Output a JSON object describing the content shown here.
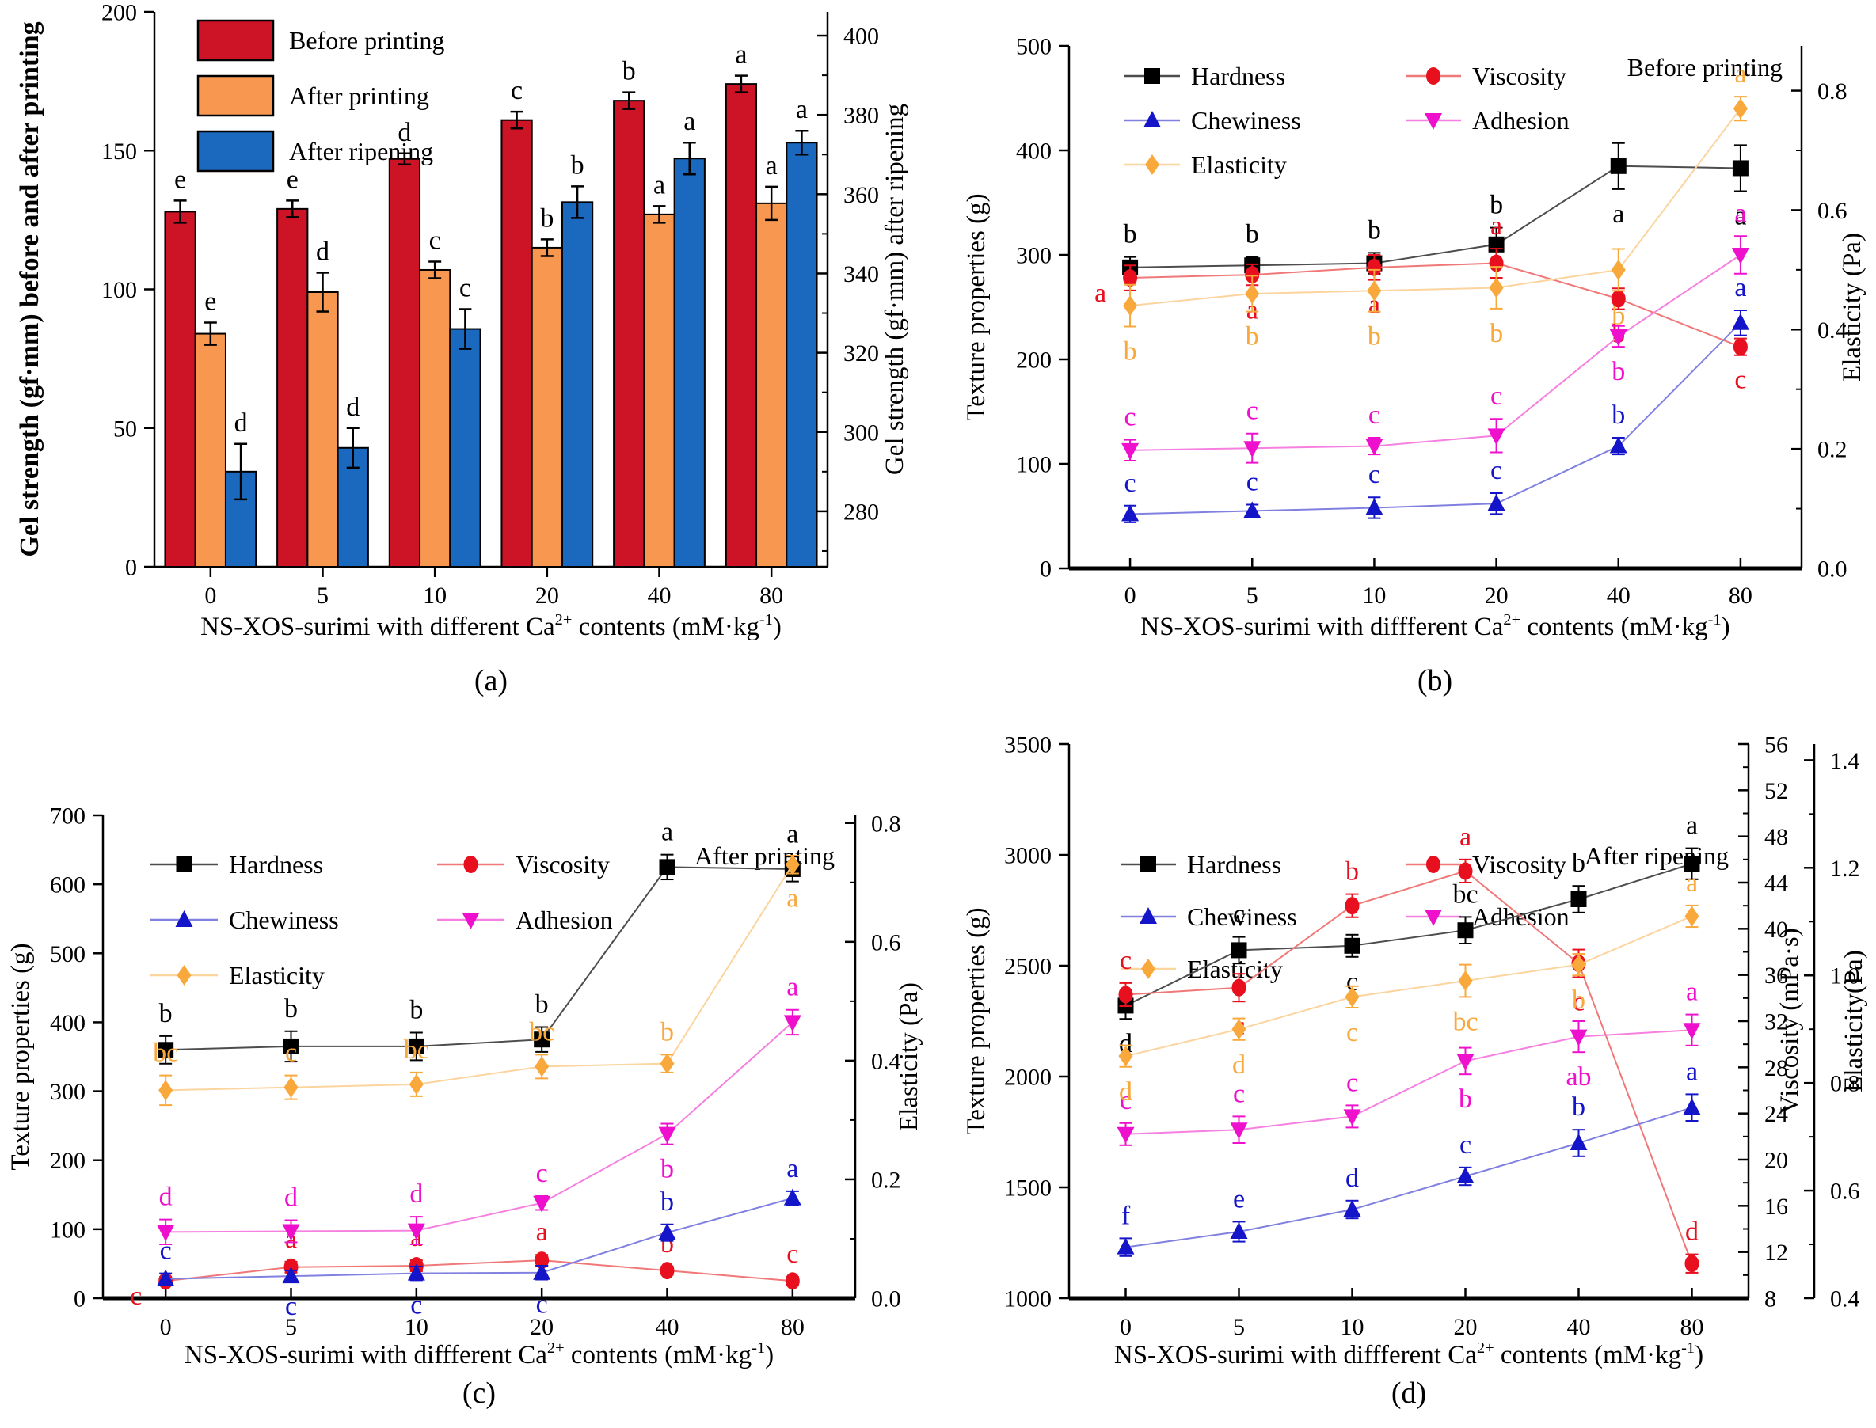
{
  "figure": {
    "background": "#ffffff"
  },
  "chart_data": [
    {
      "key": "a",
      "type": "bar",
      "caption": "(a)",
      "categories": [
        "0",
        "5",
        "10",
        "20",
        "40",
        "80"
      ],
      "x_title_segments": [
        {
          "t": "NS-XOS-surimi with different Ca"
        },
        {
          "t": "2+",
          "sup": true
        },
        {
          "t": " contents (mM·kg"
        },
        {
          "t": "-1",
          "sup": true
        },
        {
          "t": ")"
        }
      ],
      "left_axis": {
        "title": "Gel strength (gf·mm) before and after printing",
        "min": 0,
        "max": 200,
        "ticks": [
          0,
          50,
          100,
          150,
          200
        ],
        "bold_title": true
      },
      "right_axis": {
        "title": "Gel strength (gf·mm) after ripening",
        "min": 266,
        "max": 406,
        "ticks": [
          280,
          300,
          320,
          340,
          360,
          380,
          400
        ],
        "minor": 10
      },
      "legend_labels": [
        "Before printing",
        "After printing",
        "After ripening"
      ],
      "series": [
        {
          "name": "Before printing",
          "axis": "left",
          "color": "#cd1426",
          "values": [
            128,
            129,
            147,
            161,
            168,
            174
          ],
          "errors": [
            4,
            3,
            2,
            3,
            3,
            3
          ],
          "letters": [
            "e",
            "e",
            "d",
            "c",
            "b",
            "a"
          ]
        },
        {
          "name": "After printing",
          "axis": "left",
          "color": "#f79750",
          "values": [
            84,
            99,
            107,
            115,
            127,
            131
          ],
          "errors": [
            4,
            7,
            3,
            3,
            3,
            6
          ],
          "letters": [
            "e",
            "d",
            "c",
            "b",
            "a",
            "a"
          ]
        },
        {
          "name": "After ripening",
          "axis": "right",
          "color": "#1a69bf",
          "values": [
            290,
            296,
            326,
            358,
            369,
            373
          ],
          "errors": [
            7,
            5,
            5,
            4,
            4,
            3
          ],
          "letters": [
            "d",
            "d",
            "c",
            "b",
            "a",
            "a"
          ]
        }
      ]
    },
    {
      "key": "b",
      "type": "line",
      "caption": "(b)",
      "inside_title": "Before printing",
      "categories": [
        "0",
        "5",
        "10",
        "20",
        "40",
        "80"
      ],
      "x_title_segments": [
        {
          "t": "NS-XOS-surimi with diffferent Ca"
        },
        {
          "t": "2+",
          "sup": true
        },
        {
          "t": " contents (mM·kg"
        },
        {
          "t": "-1",
          "sup": true
        },
        {
          "t": ")"
        }
      ],
      "left_axis": {
        "title": "Texture properties (g)",
        "min": 0,
        "max": 500,
        "ticks": [
          0,
          100,
          200,
          300,
          400,
          500
        ]
      },
      "right_axis": {
        "title": "Elasticity (Pa)",
        "min": 0,
        "max": 0.875,
        "ticks": [
          0.0,
          0.2,
          0.4,
          0.6,
          0.8
        ],
        "minor": 0.1,
        "decimals": 1
      },
      "series": [
        {
          "name": "Hardness",
          "axis": "left",
          "marker": "square",
          "color": "#000000",
          "line_color": "#4d4d4d",
          "values": [
            288,
            290,
            292,
            310,
            385,
            383
          ],
          "errors": [
            10,
            8,
            10,
            16,
            22,
            22
          ],
          "letters": [
            "b",
            "b",
            "b",
            "b",
            "a",
            "a"
          ],
          "letter_pos": [
            "above",
            "above",
            "above",
            "above",
            "below",
            "below"
          ]
        },
        {
          "name": "Viscosity",
          "axis": "left",
          "marker": "circle",
          "color": "#e8101e",
          "line_color": "#f07878",
          "values": [
            278,
            281,
            288,
            292,
            258,
            212
          ],
          "errors": [
            12,
            10,
            12,
            14,
            10,
            8
          ],
          "letters": [
            "a",
            "a",
            "a",
            "a",
            "b",
            "c"
          ],
          "letter_pos": [
            "left",
            "below",
            "below",
            "above",
            "below",
            "below"
          ]
        },
        {
          "name": "Chewiness",
          "axis": "left",
          "marker": "triangle-up",
          "color": "#1414c8",
          "line_color": "#8080e0",
          "values": [
            52,
            55,
            58,
            62,
            117,
            235
          ],
          "errors": [
            8,
            6,
            10,
            10,
            8,
            12
          ],
          "letters": [
            "c",
            "c",
            "c",
            "c",
            "b",
            "a"
          ],
          "letter_pos": [
            "above",
            "above",
            "above",
            "above",
            "above",
            "above"
          ]
        },
        {
          "name": "Adhesion",
          "axis": "left",
          "marker": "triangle-down",
          "color": "#ee10cc",
          "line_color": "#f580e0",
          "values": [
            113,
            115,
            117,
            127,
            222,
            300
          ],
          "errors": [
            10,
            14,
            8,
            16,
            10,
            18
          ],
          "letters": [
            "c",
            "c",
            "c",
            "c",
            "b",
            "a"
          ],
          "letter_pos": [
            "above",
            "above",
            "above",
            "above",
            "below",
            "above"
          ]
        },
        {
          "name": "Elasticity",
          "axis": "right",
          "marker": "diamond",
          "color": "#f9a83c",
          "line_color": "#fbd49e",
          "values": [
            0.44,
            0.46,
            0.465,
            0.47,
            0.5,
            0.77
          ],
          "errors": [
            0.035,
            0.03,
            0.035,
            0.035,
            0.035,
            0.02
          ],
          "letters": [
            "b",
            "b",
            "b",
            "b",
            "b",
            "a"
          ],
          "letter_pos": [
            "below",
            "below",
            "below",
            "below",
            "below",
            "above"
          ]
        }
      ]
    },
    {
      "key": "c",
      "type": "line",
      "caption": "(c)",
      "inside_title": "After printing",
      "categories": [
        "0",
        "5",
        "10",
        "20",
        "40",
        "80"
      ],
      "x_title_segments": [
        {
          "t": "NS-XOS-surimi with diffferent Ca"
        },
        {
          "t": "2+",
          "sup": true
        },
        {
          "t": " contents (mM·kg"
        },
        {
          "t": "-1",
          "sup": true
        },
        {
          "t": ")"
        }
      ],
      "left_axis": {
        "title": "Texture properties (g)",
        "min": 0,
        "max": 700,
        "ticks": [
          0,
          100,
          200,
          300,
          400,
          500,
          600,
          700
        ]
      },
      "right_axis": {
        "title": "Elasticity (Pa)",
        "min": 0,
        "max": 0.813,
        "ticks": [
          0.0,
          0.2,
          0.4,
          0.6,
          0.8
        ],
        "minor": 0.1,
        "decimals": 1
      },
      "series": [
        {
          "name": "Hardness",
          "axis": "left",
          "marker": "square",
          "color": "#000000",
          "line_color": "#4d4d4d",
          "values": [
            360,
            365,
            365,
            375,
            625,
            622
          ],
          "errors": [
            20,
            22,
            20,
            18,
            18,
            18
          ],
          "letters": [
            "b",
            "b",
            "b",
            "b",
            "a",
            "a"
          ],
          "letter_pos": [
            "above",
            "above",
            "above",
            "above",
            "above",
            "above"
          ]
        },
        {
          "name": "Viscosity",
          "axis": "left",
          "marker": "circle",
          "color": "#e8101e",
          "line_color": "#f07878",
          "values": [
            25,
            45,
            47,
            55,
            40,
            25
          ],
          "errors": [
            6,
            8,
            8,
            8,
            6,
            6
          ],
          "letters": [
            "c",
            "a",
            "a",
            "a",
            "b",
            "c"
          ],
          "letter_pos": [
            "left",
            "above",
            "above",
            "above",
            "above",
            "above"
          ]
        },
        {
          "name": "Chewiness",
          "axis": "left",
          "marker": "triangle-up",
          "color": "#1414c8",
          "line_color": "#8080e0",
          "values": [
            28,
            32,
            36,
            37,
            95,
            145
          ],
          "errors": [
            8,
            8,
            10,
            10,
            12,
            10
          ],
          "letters": [
            "c",
            "c",
            "c",
            "c",
            "b",
            "a"
          ],
          "letter_pos": [
            "above",
            "below",
            "below",
            "below",
            "above",
            "above"
          ]
        },
        {
          "name": "Adhesion",
          "axis": "left",
          "marker": "triangle-down",
          "color": "#ee10cc",
          "line_color": "#f580e0",
          "values": [
            96,
            97,
            98,
            138,
            238,
            400
          ],
          "errors": [
            18,
            16,
            20,
            10,
            15,
            18
          ],
          "letters": [
            "d",
            "d",
            "d",
            "c",
            "b",
            "a"
          ],
          "letter_pos": [
            "above",
            "above",
            "above",
            "above",
            "below",
            "above"
          ]
        },
        {
          "name": "Elasticity",
          "axis": "right",
          "marker": "diamond",
          "color": "#f9a83c",
          "line_color": "#fbd49e",
          "values": [
            0.35,
            0.355,
            0.36,
            0.39,
            0.395,
            0.73
          ],
          "errors": [
            0.025,
            0.02,
            0.02,
            0.02,
            0.015,
            0.015
          ],
          "letters": [
            "bc",
            "c",
            "bc",
            "bc",
            "b",
            "a"
          ],
          "letter_pos": [
            "above",
            "above",
            "above",
            "above",
            "above",
            "below"
          ]
        }
      ]
    },
    {
      "key": "d",
      "type": "line",
      "caption": "(d)",
      "inside_title": "After ripening",
      "categories": [
        "0",
        "5",
        "10",
        "20",
        "40",
        "80"
      ],
      "x_title_segments": [
        {
          "t": "NS-XOS-surimi with diffferent Ca"
        },
        {
          "t": "2+",
          "sup": true
        },
        {
          "t": " contents (mM·kg"
        },
        {
          "t": "-1",
          "sup": true
        },
        {
          "t": ")"
        }
      ],
      "left_axis": {
        "title": "Texture properties (g)",
        "min": 1000,
        "max": 3500,
        "ticks": [
          1000,
          1500,
          2000,
          2500,
          3000,
          3500
        ]
      },
      "right_axis": {
        "title": "Viscosity (mPa·s)",
        "min": 8,
        "max": 56,
        "ticks": [
          8,
          12,
          16,
          20,
          24,
          28,
          32,
          36,
          40,
          44,
          48,
          52,
          56
        ],
        "minor": 2
      },
      "right2_axis": {
        "title": "Elasticity(Pa)",
        "min": 0.4,
        "max": 1.43,
        "ticks": [
          0.4,
          0.6,
          0.8,
          1.0,
          1.2,
          1.4
        ],
        "minor": 0.1,
        "decimals": 1
      },
      "series": [
        {
          "name": "Hardness",
          "axis": "left",
          "marker": "square",
          "color": "#000000",
          "line_color": "#4d4d4d",
          "values": [
            2320,
            2570,
            2590,
            2660,
            2800,
            2960
          ],
          "errors": [
            60,
            60,
            50,
            60,
            60,
            70
          ],
          "letters": [
            "d",
            "c",
            "c",
            "bc",
            "b",
            "a"
          ],
          "letter_pos": [
            "below",
            "above",
            "below",
            "above",
            "above",
            "above"
          ]
        },
        {
          "name": "Viscosity",
          "axis": "right",
          "marker": "circle",
          "color": "#e8101e",
          "line_color": "#f07878",
          "values": [
            34.3,
            34.9,
            42,
            45,
            37,
            11
          ],
          "errors": [
            1,
            1.2,
            1,
            1,
            1.2,
            0.8
          ],
          "letters": [
            "c",
            "c",
            "b",
            "a",
            "c",
            "d"
          ],
          "letter_pos": [
            "above",
            "below",
            "above",
            "above",
            "below",
            "above"
          ]
        },
        {
          "name": "Chewiness",
          "axis": "left",
          "marker": "triangle-up",
          "color": "#1414c8",
          "line_color": "#8080e0",
          "values": [
            1230,
            1300,
            1400,
            1550,
            1700,
            1860
          ],
          "errors": [
            40,
            45,
            40,
            40,
            60,
            60
          ],
          "letters": [
            "f",
            "e",
            "d",
            "c",
            "b",
            "a"
          ],
          "letter_pos": [
            "above",
            "above",
            "above",
            "above",
            "above",
            "above"
          ]
        },
        {
          "name": "Adhesion",
          "axis": "left",
          "marker": "triangle-down",
          "color": "#ee10cc",
          "line_color": "#f580e0",
          "values": [
            1740,
            1760,
            1820,
            2070,
            2180,
            2210
          ],
          "errors": [
            50,
            60,
            50,
            60,
            70,
            70
          ],
          "letters": [
            "c",
            "c",
            "c",
            "b",
            "ab",
            "a"
          ],
          "letter_pos": [
            "above",
            "above",
            "above",
            "below",
            "below",
            "above"
          ]
        },
        {
          "name": "Elasticity",
          "axis": "right2",
          "marker": "diamond",
          "color": "#f9a83c",
          "line_color": "#fbd49e",
          "values": [
            0.85,
            0.9,
            0.96,
            0.99,
            1.02,
            1.11
          ],
          "errors": [
            0.02,
            0.02,
            0.02,
            0.03,
            0.02,
            0.02
          ],
          "letters": [
            "d",
            "d",
            "c",
            "bc",
            "b",
            "a"
          ],
          "letter_pos": [
            "below",
            "below",
            "below",
            "below",
            "below",
            "above"
          ]
        }
      ]
    }
  ]
}
